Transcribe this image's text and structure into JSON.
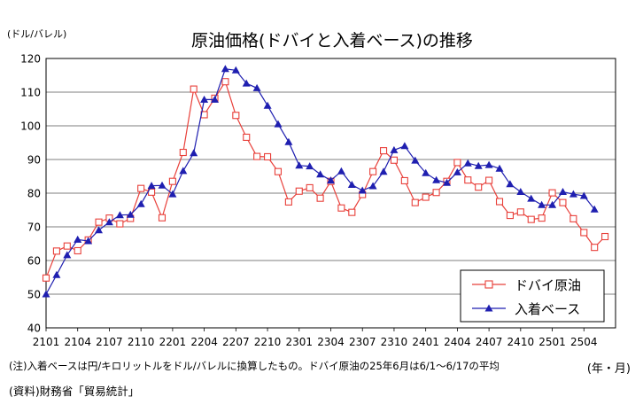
{
  "y_unit": "(ドル/バレル)",
  "x_unit": "(年・月)",
  "footnote": "(注)入着ベースは円/キロリットルをドル/バレルに換算したもの。ドバイ原油の25年6月は6/1～6/17の平均",
  "source": "(資料)財務省「貿易統計」",
  "colors": {
    "dubai": "#e8403a",
    "arrival": "#1f1fb0"
  },
  "chart_data": {
    "type": "line",
    "title": "原油価格(ドバイと入着ベース)の推移",
    "xlabel": "",
    "ylabel": "",
    "ylim": [
      40,
      120
    ],
    "yticks": [
      40,
      50,
      60,
      70,
      80,
      90,
      100,
      110,
      120
    ],
    "grid": true,
    "legend_position": "bottom-right",
    "x_tick_labels": [
      "2101",
      "2104",
      "2107",
      "2110",
      "2201",
      "2204",
      "2207",
      "2210",
      "2301",
      "2304",
      "2307",
      "2310",
      "2401",
      "2404",
      "2407",
      "2410",
      "2501",
      "2504"
    ],
    "x_start": "2021-01",
    "series": [
      {
        "name": "ドバイ原油",
        "marker": "square-open",
        "values": [
          54.8,
          62.8,
          64.3,
          62.9,
          66.1,
          71.4,
          72.6,
          70.9,
          72.5,
          81.4,
          80.3,
          72.7,
          83.5,
          92.1,
          110.9,
          103.3,
          108.2,
          113.1,
          103.1,
          96.6,
          90.9,
          90.8,
          86.4,
          77.4,
          80.6,
          81.6,
          78.5,
          83.5,
          75.6,
          74.3,
          79.6,
          86.4,
          92.6,
          89.8,
          83.7,
          77.2,
          78.8,
          80.2,
          83.5,
          89.1,
          83.9,
          81.8,
          83.8,
          77.5,
          73.4,
          74.4,
          72.2,
          72.6,
          80.1,
          77.2,
          72.4,
          68.3,
          63.9,
          67.1
        ]
      },
      {
        "name": "入着ベース",
        "marker": "triangle-filled",
        "values": [
          50.0,
          55.7,
          61.6,
          66.2,
          65.8,
          69.0,
          71.4,
          73.5,
          73.6,
          76.8,
          82.2,
          82.3,
          79.7,
          86.6,
          91.9,
          107.8,
          107.8,
          116.9,
          116.5,
          112.6,
          111.2,
          106.0,
          100.5,
          95.2,
          88.2,
          88.0,
          85.6,
          83.8,
          86.5,
          82.5,
          80.8,
          82.1,
          86.4,
          92.8,
          94.0,
          89.7,
          86.0,
          83.9,
          83.1,
          86.2,
          88.9,
          88.1,
          88.4,
          87.3,
          82.7,
          80.4,
          78.4,
          76.5,
          76.5,
          80.4,
          79.7,
          79.2,
          75.2
        ]
      }
    ]
  }
}
